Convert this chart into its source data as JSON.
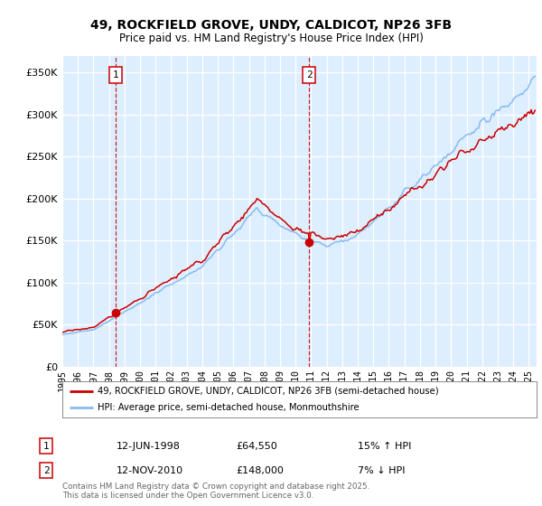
{
  "title": "49, ROCKFIELD GROVE, UNDY, CALDICOT, NP26 3FB",
  "subtitle": "Price paid vs. HM Land Registry's House Price Index (HPI)",
  "ylim": [
    0,
    370000
  ],
  "yticks": [
    0,
    50000,
    100000,
    150000,
    200000,
    250000,
    300000,
    350000
  ],
  "xlim_start": 1995.0,
  "xlim_end": 2025.5,
  "sale1_x": 1998.45,
  "sale1_y": 64550,
  "sale1_label": "1",
  "sale1_date": "12-JUN-1998",
  "sale1_price": "£64,550",
  "sale1_hpi": "15% ↑ HPI",
  "sale2_x": 2010.87,
  "sale2_y": 148000,
  "sale2_label": "2",
  "sale2_date": "12-NOV-2010",
  "sale2_price": "£148,000",
  "sale2_hpi": "7% ↓ HPI",
  "line_color_price": "#cc0000",
  "line_color_hpi": "#88bbee",
  "plot_bg_color": "#ddeeff",
  "grid_color": "#ffffff",
  "legend_label1": "49, ROCKFIELD GROVE, UNDY, CALDICOT, NP26 3FB (semi-detached house)",
  "legend_label2": "HPI: Average price, semi-detached house, Monmouthshire",
  "footnote": "Contains HM Land Registry data © Crown copyright and database right 2025.\nThis data is licensed under the Open Government Licence v3.0.",
  "sale_marker_color": "#cc0000",
  "sale_box_edge_color": "#cc0000"
}
